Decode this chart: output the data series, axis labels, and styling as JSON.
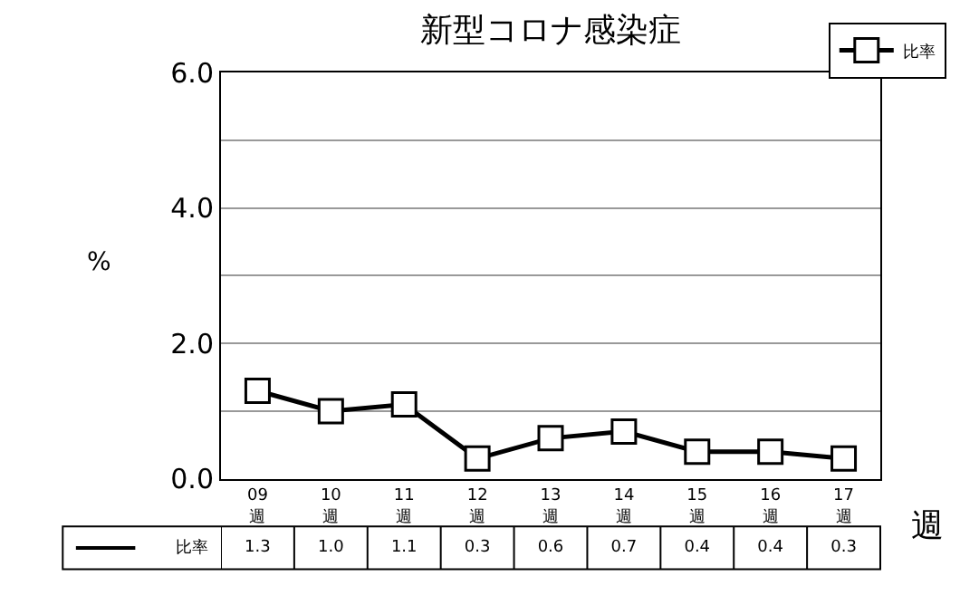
{
  "chart_data": {
    "type": "line",
    "title": "新型コロナ感染症",
    "ylabel": "%",
    "xlabel": "週",
    "categories": [
      "09\n週",
      "10\n週",
      "11\n週",
      "12\n週",
      "13\n週",
      "14\n週",
      "15\n週",
      "16\n週",
      "17\n週"
    ],
    "series": [
      {
        "name": "比率",
        "color": "#000000",
        "values": [
          1.3,
          1.0,
          1.1,
          0.3,
          0.6,
          0.7,
          0.4,
          0.4,
          0.3
        ],
        "value_labels": [
          "1.3",
          "1.0",
          "1.1",
          "0.3",
          "0.6",
          "0.7",
          "0.4",
          "0.4",
          "0.3"
        ]
      }
    ],
    "ylim": [
      0,
      6
    ],
    "yticks": [
      {
        "value": 0,
        "label": "0.0"
      },
      {
        "value": 1,
        "label": null
      },
      {
        "value": 2,
        "label": "2.0"
      },
      {
        "value": 3,
        "label": null
      },
      {
        "value": 4,
        "label": "4.0"
      },
      {
        "value": 5,
        "label": null
      },
      {
        "value": 6,
        "label": "6.0"
      }
    ],
    "grid": "y",
    "marker": "square",
    "line_style": "solid",
    "legend": "top right"
  }
}
